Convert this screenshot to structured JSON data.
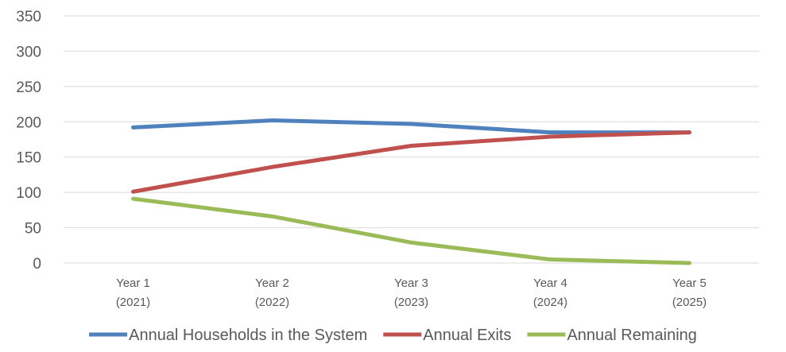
{
  "chart_data": {
    "type": "line",
    "title": "",
    "xlabel": "",
    "ylabel": "",
    "categories": [
      [
        "Year 1",
        "(2021)"
      ],
      [
        "Year 2",
        "(2022)"
      ],
      [
        "Year 3",
        "(2023)"
      ],
      [
        "Year 4",
        "(2024)"
      ],
      [
        "Year 5",
        "(2025)"
      ]
    ],
    "ylim": [
      0,
      350
    ],
    "yticks": [
      0,
      50,
      100,
      150,
      200,
      250,
      300,
      350
    ],
    "grid": true,
    "legend_position": "bottom",
    "series": [
      {
        "name": "Annual Households in the System",
        "color": "#4f81bd",
        "values": [
          192,
          202,
          197,
          185,
          185
        ]
      },
      {
        "name": "Annual Exits",
        "color": "#c0504d",
        "values": [
          101,
          136,
          166,
          179,
          185
        ]
      },
      {
        "name": "Annual Remaining",
        "color": "#9bbb59",
        "values": [
          91,
          66,
          29,
          5,
          0
        ]
      }
    ]
  }
}
